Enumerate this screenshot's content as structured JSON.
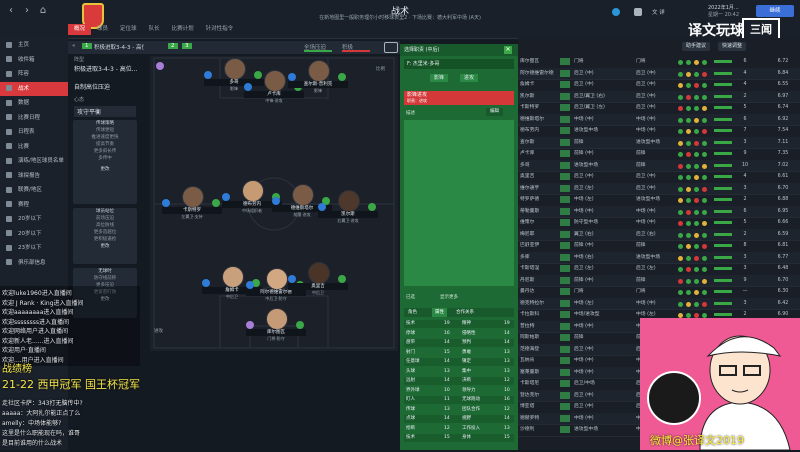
{
  "topbar": {
    "title": "战术",
    "subtitle": "在新地图里一般职务理尔小时移球表里2 · 下场比赛：德大利军中场 (A天)",
    "date": "2022年1月...",
    "date_time": "星期一 20:42",
    "lang": "文 详",
    "search": "搜索",
    "continue": "继续"
  },
  "watermark": {
    "text": "译文玩球",
    "logo": "三闻",
    "number": "4659776"
  },
  "tabs": [
    "概况",
    "球员",
    "定位球",
    "队长",
    "比赛计划",
    "针对性指令"
  ],
  "sidebar": {
    "items": [
      "主页",
      "收件箱",
      "阵容",
      "战术",
      "数据",
      "比赛日程",
      "日程表",
      "比赛",
      "演练/地区球员名单",
      "球探报告",
      "联赛/地区",
      "赛程",
      "20岁以下",
      "20岁以下",
      "23岁以下",
      "俱乐部信息",
      "本报道",
      "比赛"
    ]
  },
  "selrow": {
    "num1": "1",
    "formation1": "积极进取3-4-3 - 高位压...",
    "num2": "2",
    "num3": "3",
    "cup": "全场压迫",
    "mentality": "积极"
  },
  "leftpanel": {
    "formation_label": "阵型",
    "formation": "积极进取3-4-3 - 高位...",
    "subtitle": "自制高位压迫",
    "mentality_label": "心态",
    "mentality": "攻守平衡",
    "box1_title": "传球策略",
    "box1": [
      "传球更短",
      "推进速度更快",
      "提高节奏",
      "更多斜长传",
      "多传中"
    ],
    "box1_btn": "更改",
    "box2_title": "球员站位",
    "box2": [
      "前场压迫",
      "高位防线",
      "更多造越位",
      "更积极逼抢"
    ],
    "box2_btn": "更改",
    "box3_title": "无球时",
    "box3": [
      "防守线前移",
      "更多压迫",
      "更紧密盯防"
    ],
    "box3_btn": "更改",
    "footer": "提示 · 查看"
  },
  "pitch": {
    "left_label": "进攻",
    "pct": "93%",
    "tag": "比例",
    "players": [
      {
        "name": "多哥",
        "role": "影锋",
        "num": "10"
      },
      {
        "name": "卢卡库",
        "role": "中锋·进攻",
        "num": "9"
      },
      {
        "name": "查尔斯·普利克",
        "role": "影锋",
        "num": "11"
      },
      {
        "name": "卡斯特罗",
        "role": "左翼卫·支持",
        "num": "3"
      },
      {
        "name": "德布劳内",
        "role": "中场组织者",
        "num": "7"
      },
      {
        "name": "德维斯塔尔",
        "role": "前腰·进攻",
        "num": "6"
      },
      {
        "name": "凯尔斯",
        "role": "右翼卫·进攻",
        "num": "2"
      },
      {
        "name": "詹姆卡",
        "role": "中后卫",
        "num": "5"
      },
      {
        "name": "阿尔德维雷尔德",
        "role": "中后卫·防守",
        "num": "4"
      },
      {
        "name": "奥里吉",
        "role": "中后卫",
        "num": "15"
      },
      {
        "name": "库尔图瓦",
        "role": "门将·防守",
        "num": "1"
      }
    ]
  },
  "instr": {
    "header": "选择职责 (中后)",
    "player": "F: 杰里米·多哥",
    "role_tag": "影锋",
    "duty": "进攻",
    "red_title": "影锋进攻",
    "red_sub": "职责：进攻",
    "desc_label": "描述",
    "edit": "编辑",
    "selected": "已选",
    "hint": "显示更多",
    "attr_tabs": [
      "角色",
      "属性",
      "合作关系"
    ],
    "attrs": [
      [
        "技术",
        "19",
        "精神",
        "19"
      ],
      [
        "停球",
        "16",
        "侵略性",
        "14"
      ],
      [
        "盘带",
        "14",
        "预判",
        "14"
      ],
      [
        "射门",
        "15",
        "勇敢",
        "13"
      ],
      [
        "任意球",
        "14",
        "镇定",
        "13"
      ],
      [
        "头球",
        "13",
        "集中",
        "13"
      ],
      [
        "远射",
        "14",
        "决断",
        "12"
      ],
      [
        "界外球",
        "10",
        "领导力",
        "10"
      ],
      [
        "盯人",
        "11",
        "无球跑动",
        "16"
      ],
      [
        "传球",
        "13",
        "团队合作",
        "12"
      ],
      [
        "点球",
        "14",
        "视野",
        "14"
      ],
      [
        "抢断",
        "12",
        "工作投入",
        "13"
      ],
      [
        "技术",
        "15",
        "身体",
        "15"
      ]
    ]
  },
  "list": {
    "btn1": "阵容",
    "btn2": "助手建议",
    "btn3": "快速调整",
    "btn4": "比赛计划",
    "rows": [
      {
        "name": "库尔图瓦",
        "pos": "门将",
        "role": "门将",
        "v1": "6",
        "v2": "6.72"
      },
      {
        "name": "阿尔德维雷尔德",
        "pos": "后卫 (中)",
        "role": "后卫 (中)",
        "v1": "4",
        "v2": "6.84"
      },
      {
        "name": "詹姆卡",
        "pos": "后卫 (中)",
        "role": "后卫 (中)",
        "v1": "4",
        "v2": "6.55"
      },
      {
        "name": "凯尔斯",
        "pos": "后卫/翼卫 (右)",
        "role": "后卫 (中)",
        "v1": "2",
        "v2": "6.97"
      },
      {
        "name": "卡斯特罗",
        "pos": "后卫/翼卫 (左)",
        "role": "后卫 (中)",
        "v1": "5",
        "v2": "6.74"
      },
      {
        "name": "德维斯塔尔",
        "pos": "中场 (中)",
        "role": "中场 (中)",
        "v1": "6",
        "v2": "6.92"
      },
      {
        "name": "德布劳内",
        "pos": "进攻型中场",
        "role": "中场 (中)",
        "v1": "7",
        "v2": "7.54"
      },
      {
        "name": "查尔斯",
        "pos": "前锋",
        "role": "进攻型中场",
        "v1": "3",
        "v2": "7.11"
      },
      {
        "name": "卢卡库",
        "pos": "前锋 (中)",
        "role": "前锋",
        "v1": "9",
        "v2": "7.35"
      },
      {
        "name": "多哥",
        "pos": "进攻型中场",
        "role": "前锋",
        "v1": "10",
        "v2": "7.02"
      },
      {
        "name": "奥里吉",
        "pos": "后卫 (中)",
        "role": "后卫 (中)",
        "v1": "4",
        "v2": "6.61"
      },
      {
        "name": "维尔通亨",
        "pos": "后卫 (左)",
        "role": "后卫 (中)",
        "v1": "3",
        "v2": "6.70"
      },
      {
        "name": "特罗萨德",
        "pos": "中场 (左)",
        "role": "进攻型中场",
        "v1": "2",
        "v2": "6.88"
      },
      {
        "name": "蒂勒曼斯",
        "pos": "中场 (中)",
        "role": "中场 (中)",
        "v1": "6",
        "v2": "6.95"
      },
      {
        "name": "维策尔",
        "pos": "防守型中场",
        "role": "中场 (中)",
        "v1": "5",
        "v2": "6.66"
      },
      {
        "name": "梅尼耶",
        "pos": "翼卫 (右)",
        "role": "后卫 (右)",
        "v1": "2",
        "v2": "6.59"
      },
      {
        "name": "巴舒亚伊",
        "pos": "前锋 (中)",
        "role": "前锋",
        "v1": "8",
        "v2": "6.81"
      },
      {
        "name": "多库",
        "pos": "中场 (右)",
        "role": "进攻型中场",
        "v1": "3",
        "v2": "6.77"
      },
      {
        "name": "卡斯塔涅",
        "pos": "后卫 (左)",
        "role": "后卫 (左)",
        "v1": "3",
        "v2": "6.48"
      },
      {
        "name": "丹尼斯",
        "pos": "前锋 (中)",
        "role": "前锋",
        "v1": "9",
        "v2": "6.70"
      },
      {
        "name": "曼丹达",
        "pos": "门将",
        "role": "门将",
        "v1": "—",
        "v2": "6.30"
      },
      {
        "name": "德克特拉尔",
        "pos": "中场 (左)",
        "role": "中场 (中)",
        "v1": "3",
        "v2": "6.42"
      },
      {
        "name": "卡拉斯科",
        "pos": "中场/进攻型",
        "role": "中场 (左)",
        "v1": "2",
        "v2": "6.90"
      },
      {
        "name": "普拉特",
        "pos": "中场 (中)",
        "role": "中场 (中)",
        "v1": "5",
        "v2": "6.60"
      },
      {
        "name": "阿斯帕斯",
        "pos": "前锋",
        "role": "前锋",
        "v1": "4",
        "v2": "6.52"
      },
      {
        "name": "范德海登",
        "pos": "后卫 (中)",
        "role": "后卫 (中)",
        "v1": "1",
        "v2": "6.40"
      },
      {
        "name": "瓦纳肯",
        "pos": "中场 (中)",
        "role": "中场 (中)",
        "v1": "1",
        "v2": "6.45"
      },
      {
        "name": "塞莱曼斯",
        "pos": "中场 (中)",
        "role": "中场 (中)",
        "v1": "3",
        "v2": "6.63"
      },
      {
        "name": "卡斯塔尼",
        "pos": "后卫/中场",
        "role": "后卫 (中)",
        "v1": "4",
        "v2": "6.58"
      },
      {
        "name": "登达克尔",
        "pos": "后卫 (中)",
        "role": "后卫 (中)",
        "v1": "2",
        "v2": "6.50"
      },
      {
        "name": "博亚塔",
        "pos": "后卫 (中)",
        "role": "后卫 (中)",
        "v1": "3",
        "v2": "6.57"
      },
      {
        "name": "德赫罗特",
        "pos": "中场 (中)",
        "role": "中场 (中)",
        "v1": "4",
        "v2": "6.68"
      },
      {
        "name": "沙德利",
        "pos": "进攻型中场",
        "role": "中场 (左)",
        "v1": "5",
        "v2": "6.74"
      }
    ]
  },
  "chat": {
    "lines": [
      "欢迎luke1960进入直播间",
      "欢迎 J Rank · King进入直播间",
      "欢迎aaaaaaaa进入直播间",
      "欢迎ssssssss进入直播间",
      "欢迎网络用户进入直播间",
      "欢迎新人老......进入直播间",
      "欢迎用户·直播间",
      "欢迎....用户进入直播间"
    ],
    "honor_label": "战绩榜",
    "honor": "21-22 西甲冠军 国王杯冠军",
    "msgs": [
      "走社区卡萨：343打无脑传中?",
      "aaaaa：大阿扎尔能正点了么",
      "amelly：中场体能够?",
      "这里是什么职能现在吗，谁哥",
      "是目前谁用的什么战术"
    ]
  },
  "cam": {
    "text": "微博@张译文2019"
  }
}
